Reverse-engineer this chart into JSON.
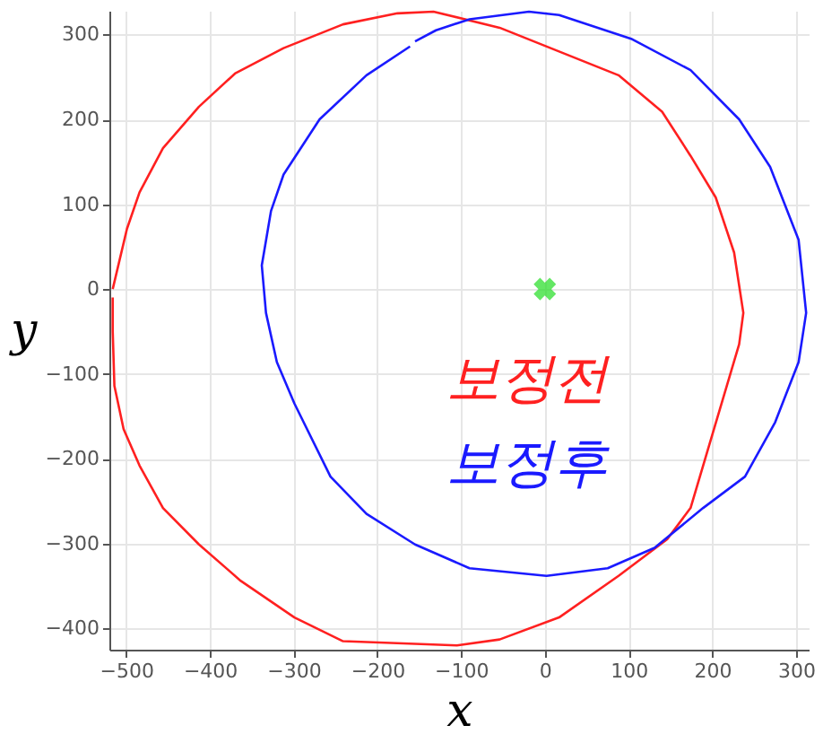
{
  "chart_data": {
    "type": "line",
    "xlabel": "x",
    "ylabel": "y",
    "xlim": [
      -520,
      315
    ],
    "ylim": [
      -425,
      328
    ],
    "xticks": [
      -500,
      -400,
      -300,
      -200,
      -100,
      0,
      100,
      200,
      300
    ],
    "yticks": [
      -400,
      -300,
      -200,
      -100,
      0,
      100,
      200,
      300
    ],
    "grid": true,
    "marker": "none",
    "line_style": "solid",
    "series": [
      {
        "name": "보정전",
        "color": "#ff2020",
        "x": [
          -516,
          -499,
          -484,
          -456,
          -413,
          -370,
          -312,
          -241,
          -176,
          -133,
          -54,
          17,
          88,
          140,
          174,
          204,
          226,
          237,
          232,
          174,
          146,
          88,
          17,
          -54,
          -105,
          -241,
          -299,
          -363,
          -413,
          -456,
          -484,
          -503,
          -514,
          -516,
          -516
        ],
        "values": [
          0,
          71,
          114,
          166,
          215,
          254,
          284,
          312,
          325,
          327,
          308,
          280,
          252,
          209,
          157,
          108,
          43,
          -28,
          -65,
          -258,
          -295,
          -338,
          -387,
          -413,
          -420,
          -415,
          -387,
          -344,
          -301,
          -258,
          -208,
          -165,
          -114,
          -50,
          -10
        ]
      },
      {
        "name": "보정후",
        "color": "#1a1aff",
        "x": [
          -161,
          -213,
          -269,
          -312,
          -327,
          -338,
          -333,
          -320,
          -299,
          -256,
          -213,
          -155,
          -90,
          2,
          75,
          131,
          189,
          239,
          275,
          303,
          312,
          303,
          269,
          232,
          174,
          103,
          17,
          -19,
          -90,
          -130,
          -155
        ],
        "values": [
          286,
          252,
          200,
          135,
          92,
          28,
          -28,
          -86,
          -135,
          -221,
          -265,
          -301,
          -329,
          -338,
          -329,
          -305,
          -258,
          -221,
          -157,
          -86,
          -28,
          58,
          144,
          200,
          258,
          295,
          323,
          327,
          318,
          305,
          292
        ]
      },
      {
        "type": "scatter",
        "marker": "cross",
        "color": "#22dd22",
        "x": [
          0
        ],
        "values": [
          0
        ]
      }
    ]
  }
}
